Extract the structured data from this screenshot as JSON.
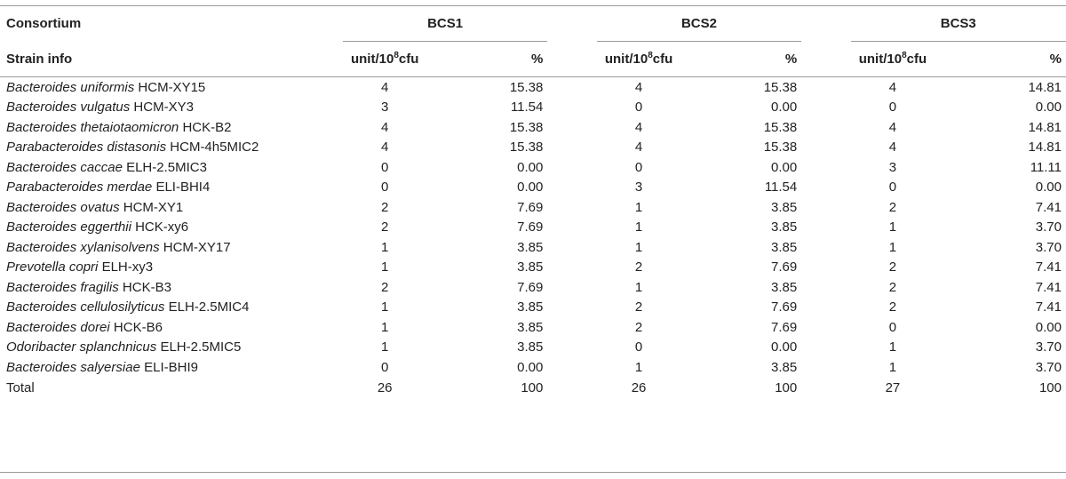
{
  "header": {
    "consortium_label": "Consortium",
    "strain_label": "Strain info",
    "groups": [
      "BCS1",
      "BCS2",
      "BCS3"
    ],
    "unit_label_prefix": "unit/10",
    "unit_label_sup": "8",
    "unit_label_suffix": "cfu",
    "pct_label": "%"
  },
  "rows": [
    {
      "genus_species": "Bacteroides uniformis",
      "strain": "HCM-XY15",
      "v": [
        "4",
        "15.38",
        "4",
        "15.38",
        "4",
        "14.81"
      ]
    },
    {
      "genus_species": "Bacteroides vulgatus",
      "strain": "HCM-XY3",
      "v": [
        "3",
        "11.54",
        "0",
        "0.00",
        "0",
        "0.00"
      ]
    },
    {
      "genus_species": "Bacteroides thetaiotaomicron",
      "strain": "HCK-B2",
      "v": [
        "4",
        "15.38",
        "4",
        "15.38",
        "4",
        "14.81"
      ]
    },
    {
      "genus_species": "Parabacteroides distasonis",
      "strain": "HCM-4h5MIC2",
      "v": [
        "4",
        "15.38",
        "4",
        "15.38",
        "4",
        "14.81"
      ]
    },
    {
      "genus_species": "Bacteroides caccae",
      "strain": "ELH-2.5MIC3",
      "v": [
        "0",
        "0.00",
        "0",
        "0.00",
        "3",
        "11.11"
      ]
    },
    {
      "genus_species": "Parabacteroides merdae",
      "strain": "ELI-BHI4",
      "v": [
        "0",
        "0.00",
        "3",
        "11.54",
        "0",
        "0.00"
      ]
    },
    {
      "genus_species": "Bacteroides ovatus",
      "strain": "HCM-XY1",
      "v": [
        "2",
        "7.69",
        "1",
        "3.85",
        "2",
        "7.41"
      ]
    },
    {
      "genus_species": "Bacteroides eggerthii",
      "strain": "HCK-xy6",
      "v": [
        "2",
        "7.69",
        "1",
        "3.85",
        "1",
        "3.70"
      ]
    },
    {
      "genus_species": "Bacteroides xylanisolvens",
      "strain": "HCM-XY17",
      "v": [
        "1",
        "3.85",
        "1",
        "3.85",
        "1",
        "3.70"
      ]
    },
    {
      "genus_species": "Prevotella copri",
      "strain": "ELH-xy3",
      "v": [
        "1",
        "3.85",
        "2",
        "7.69",
        "2",
        "7.41"
      ]
    },
    {
      "genus_species": "Bacteroides fragilis",
      "strain": "HCK-B3",
      "v": [
        "2",
        "7.69",
        "1",
        "3.85",
        "2",
        "7.41"
      ]
    },
    {
      "genus_species": "Bacteroides cellulosilyticus",
      "strain": "ELH-2.5MIC4",
      "v": [
        "1",
        "3.85",
        "2",
        "7.69",
        "2",
        "7.41"
      ]
    },
    {
      "genus_species": "Bacteroides dorei",
      "strain": "HCK-B6",
      "v": [
        "1",
        "3.85",
        "2",
        "7.69",
        "0",
        "0.00"
      ]
    },
    {
      "genus_species": "Odoribacter splanchnicus",
      "strain": "ELH-2.5MIC5",
      "v": [
        "1",
        "3.85",
        "0",
        "0.00",
        "1",
        "3.70"
      ]
    },
    {
      "genus_species": "Bacteroides salyersiae",
      "strain": "ELI-BHI9",
      "v": [
        "0",
        "0.00",
        "1",
        "3.85",
        "1",
        "3.70"
      ]
    }
  ],
  "total": {
    "label": "Total",
    "v": [
      "26",
      "100",
      "26",
      "100",
      "27",
      "100"
    ]
  }
}
